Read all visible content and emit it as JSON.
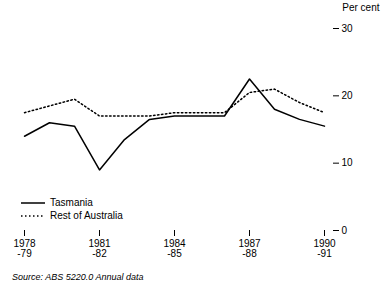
{
  "chart_data": {
    "type": "line",
    "categories": [
      "1978\n-79",
      null,
      null,
      "1981\n-82",
      null,
      null,
      "1984\n-85",
      null,
      null,
      "1987\n-88",
      null,
      null,
      "1990\n-91"
    ],
    "series": [
      {
        "name": "Tasmania",
        "color": "#000000",
        "line_style": "solid",
        "values": [
          14.0,
          16.0,
          15.5,
          9.0,
          13.5,
          16.5,
          17.0,
          17.0,
          17.0,
          22.5,
          18.0,
          16.5,
          15.5
        ]
      },
      {
        "name": "Rest of Australia",
        "color": "#000000",
        "line_style": "dotted",
        "values": [
          17.5,
          18.5,
          19.5,
          17.0,
          17.0,
          17.0,
          17.5,
          17.5,
          17.5,
          20.5,
          21.0,
          19.0,
          17.5
        ]
      }
    ],
    "y_label": "Per cent",
    "ylim": [
      0,
      30
    ],
    "yticks": [
      0,
      10,
      20,
      30
    ],
    "grid": false,
    "legend": "lower left",
    "annotations": [
      "Source: ABS 5220.0 Annual data"
    ]
  }
}
